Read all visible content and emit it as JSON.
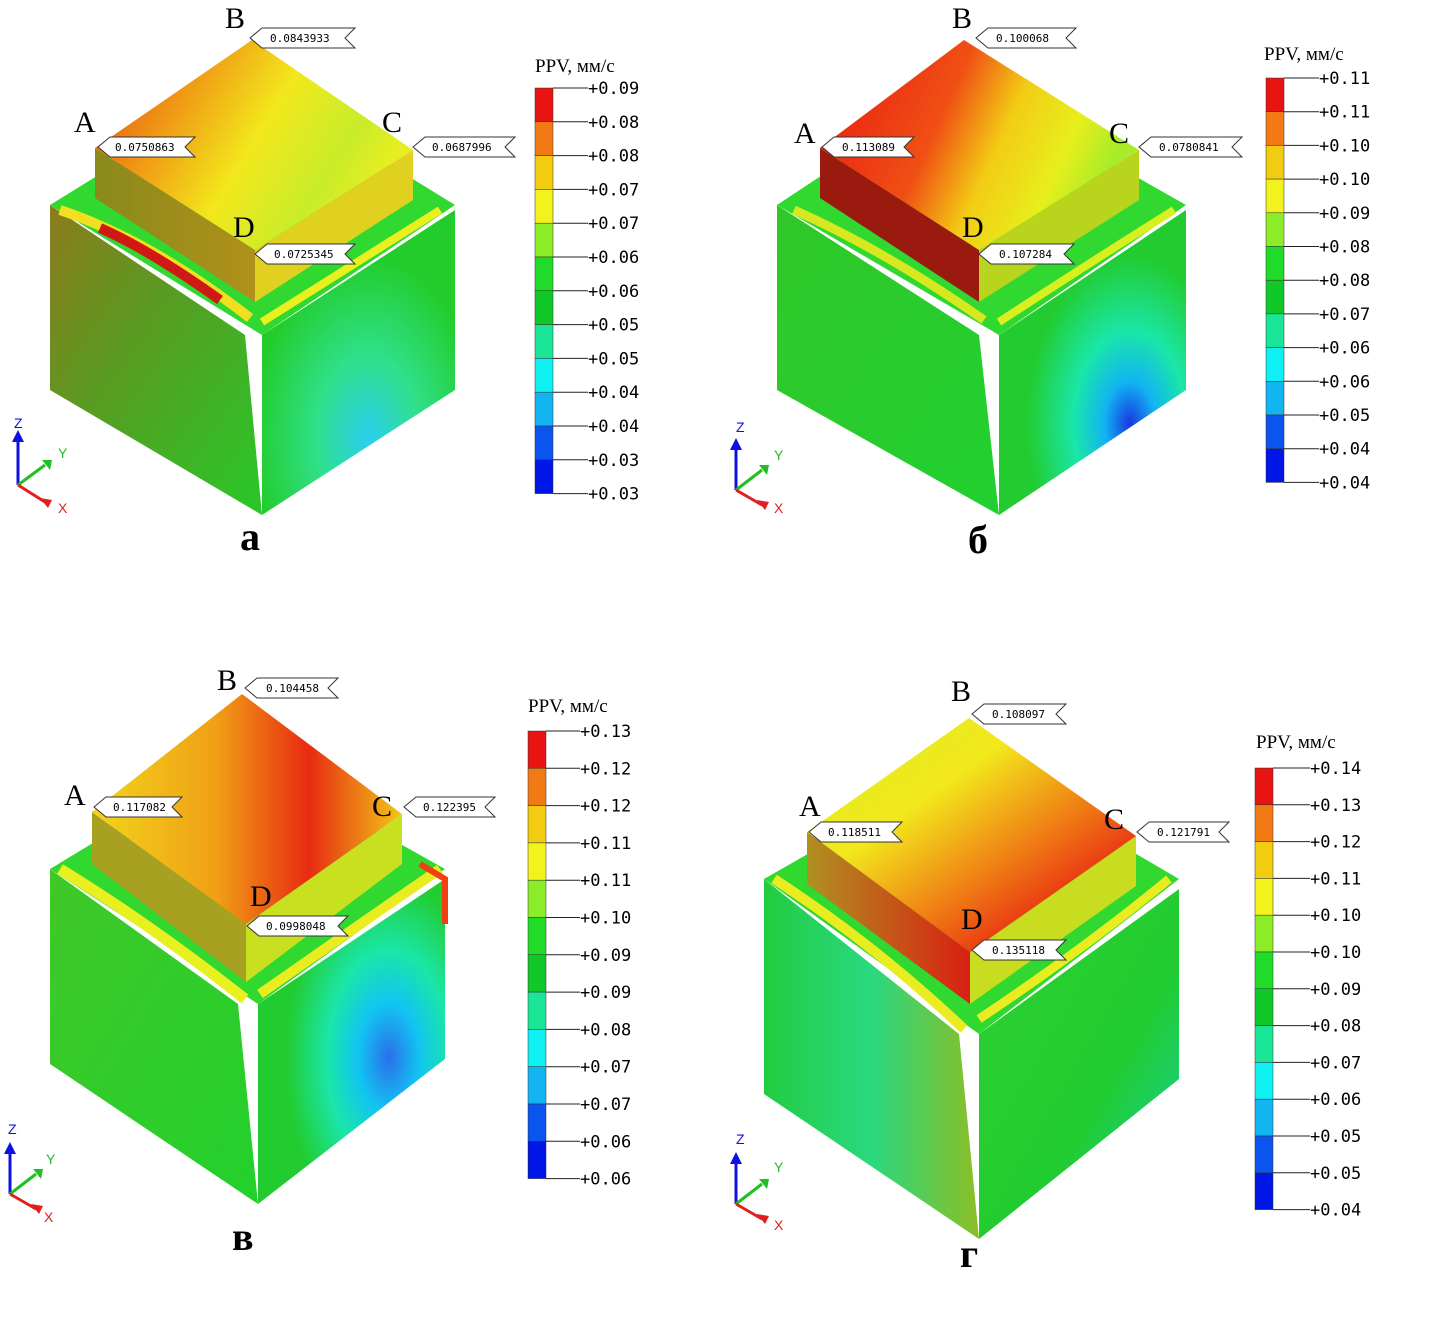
{
  "legend_title": "PPV, мм/с",
  "axes": {
    "z": "Z",
    "y": "Y",
    "x": "X"
  },
  "palette": [
    "#0016e6",
    "#0a55ee",
    "#12b4f2",
    "#0ef0f2",
    "#1ae698",
    "#10c828",
    "#20dc28",
    "#8cec28",
    "#f2f21c",
    "#f2cc10",
    "#f27a14",
    "#e81412"
  ],
  "panels": [
    {
      "id": "a",
      "caption": "а",
      "legend_ticks": [
        "+0.09",
        "+0.08",
        "+0.08",
        "+0.07",
        "+0.07",
        "+0.06",
        "+0.06",
        "+0.05",
        "+0.05",
        "+0.04",
        "+0.04",
        "+0.03",
        "+0.03"
      ],
      "points": [
        {
          "label": "A",
          "value": "0.0750863"
        },
        {
          "label": "B",
          "value": "0.0843933"
        },
        {
          "label": "C",
          "value": "0.0687996"
        },
        {
          "label": "D",
          "value": "0.0725345"
        }
      ]
    },
    {
      "id": "b",
      "caption": "б",
      "legend_ticks": [
        "+0.11",
        "+0.11",
        "+0.10",
        "+0.10",
        "+0.09",
        "+0.08",
        "+0.08",
        "+0.07",
        "+0.06",
        "+0.06",
        "+0.05",
        "+0.04",
        "+0.04"
      ],
      "points": [
        {
          "label": "A",
          "value": "0.113089"
        },
        {
          "label": "B",
          "value": "0.100068"
        },
        {
          "label": "C",
          "value": "0.0780841"
        },
        {
          "label": "D",
          "value": "0.107284"
        }
      ]
    },
    {
      "id": "v",
      "caption": "в",
      "legend_ticks": [
        "+0.13",
        "+0.12",
        "+0.12",
        "+0.11",
        "+0.11",
        "+0.10",
        "+0.09",
        "+0.09",
        "+0.08",
        "+0.07",
        "+0.07",
        "+0.06",
        "+0.06"
      ],
      "points": [
        {
          "label": "A",
          "value": "0.117082"
        },
        {
          "label": "B",
          "value": "0.104458"
        },
        {
          "label": "C",
          "value": "0.122395"
        },
        {
          "label": "D",
          "value": "0.0998048"
        }
      ]
    },
    {
      "id": "g",
      "caption": "г",
      "legend_ticks": [
        "+0.14",
        "+0.13",
        "+0.12",
        "+0.11",
        "+0.10",
        "+0.10",
        "+0.09",
        "+0.08",
        "+0.07",
        "+0.06",
        "+0.05",
        "+0.05",
        "+0.04"
      ],
      "points": [
        {
          "label": "A",
          "value": "0.118511"
        },
        {
          "label": "B",
          "value": "0.108097"
        },
        {
          "label": "C",
          "value": "0.121791"
        },
        {
          "label": "D",
          "value": "0.135118"
        }
      ]
    }
  ]
}
